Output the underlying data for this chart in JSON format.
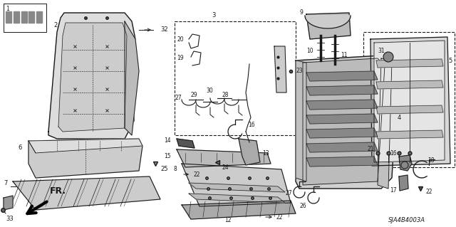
{
  "bg": "#ffffff",
  "lc": "#1a1a1a",
  "fig_w": 6.4,
  "fig_h": 3.19,
  "dpi": 100,
  "diagram_id": "SJA4B4003A",
  "fr_text": "FR."
}
